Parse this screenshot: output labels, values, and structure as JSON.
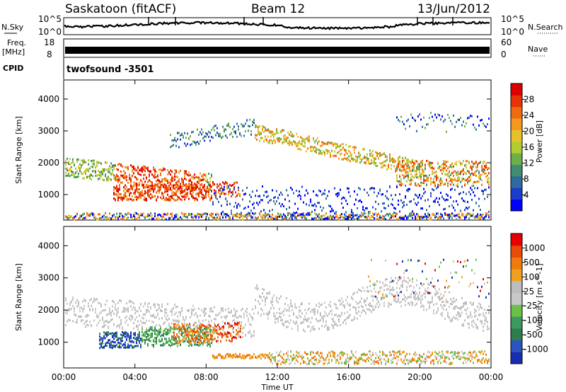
{
  "header": {
    "station": "Saskatoon (fitACF)",
    "beam": "Beam 12",
    "date": "13/Jun/2012"
  },
  "left_labels": {
    "nsky": "N.Sky",
    "freq": "Freq.",
    "freq_unit": "[MHz]",
    "cpid": "CPID"
  },
  "right_labels": {
    "nsearch": "N.Search",
    "nave": "Nave"
  },
  "cpid_value": "twofsound -3501",
  "chart_data": [
    {
      "type": "line",
      "panel": "noise",
      "left_axis": {
        "label": "N.Sky",
        "ticks": [
          "10^5",
          "10^0"
        ]
      },
      "right_axis": {
        "label": "N.Search",
        "ticks": [
          "10^5",
          "10^0"
        ]
      }
    },
    {
      "type": "line",
      "panel": "frequency",
      "left_axis": {
        "label": "Freq. [MHz]",
        "ticks": [
          "18",
          "8"
        ]
      },
      "right_axis": {
        "label": "Nave",
        "ticks": [
          "60",
          "0"
        ]
      }
    },
    {
      "type": "heatmap",
      "panel": "power",
      "ylabel": "Slant Range [km]",
      "ylim": [
        200,
        4600
      ],
      "yticks": [
        "4000",
        "3000",
        "2000",
        "1000"
      ],
      "colorbar": {
        "label": "Power [dB]",
        "ticks": [
          "28",
          "24",
          "20",
          "16",
          "12",
          "8",
          "4"
        ],
        "colors": [
          "#0000ff",
          "#1c3ccc",
          "#2f6aa0",
          "#3f8c70",
          "#6db04a",
          "#b2cd2f",
          "#e8c12a",
          "#f39a1c",
          "#f06a10",
          "#e83208",
          "#dd0000"
        ]
      }
    },
    {
      "type": "heatmap",
      "panel": "velocity",
      "ylabel": "Velocity [m s^-1]",
      "ylabel_left": "Slant Range [km]",
      "ylim": [
        200,
        4600
      ],
      "yticks": [
        "4000",
        "3000",
        "2000",
        "1000"
      ],
      "xlabel": "Time UT",
      "xticks": [
        "00:00",
        "04:00",
        "08:00",
        "12:00",
        "16:00",
        "20:00",
        "00:00"
      ],
      "colorbar": {
        "label": "Velocity [m s^-1]",
        "ticks": [
          "1000",
          "500",
          "100",
          "25",
          "-25",
          "-100",
          "-500",
          "-1000"
        ],
        "colors": [
          "#1a2db0",
          "#2a55c0",
          "#2e7d4f",
          "#3c9a60",
          "#6cc04a",
          "#c8c8c8",
          "#bdbdbd",
          "#f0a020",
          "#f07a10",
          "#e84a08",
          "#e80000"
        ]
      }
    }
  ]
}
